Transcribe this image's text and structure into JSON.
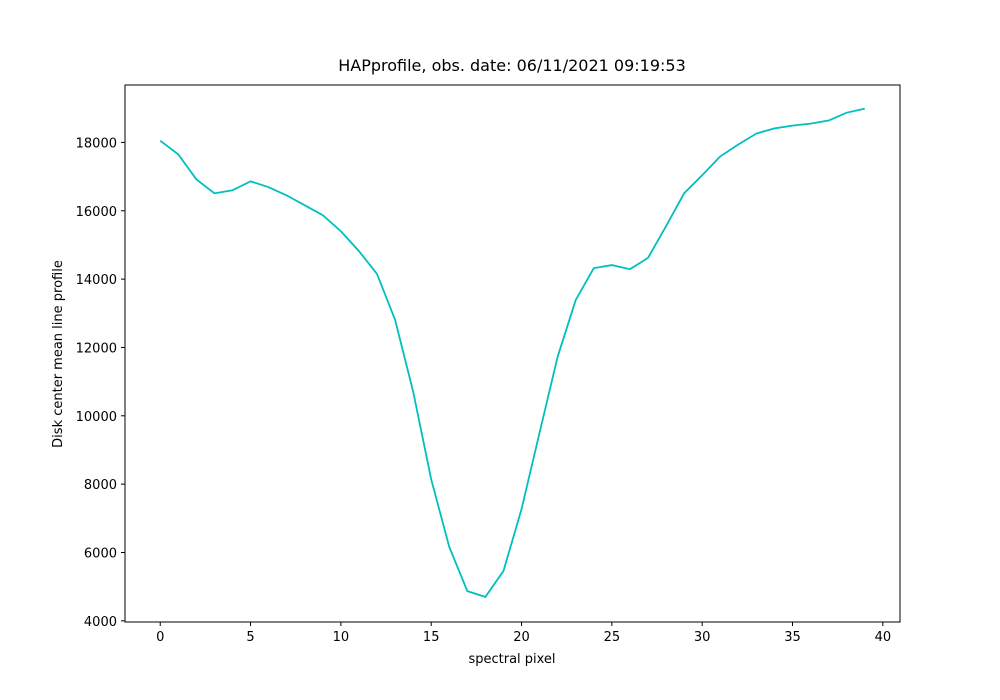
{
  "chart_data": {
    "type": "line",
    "title": "HAPprofile, obs. date: 06/11/2021 09:19:53",
    "xlabel": "spectral pixel",
    "ylabel": "Disk center mean line profile",
    "x": [
      0,
      1,
      2,
      3,
      4,
      5,
      6,
      7,
      8,
      9,
      10,
      11,
      12,
      13,
      14,
      15,
      16,
      17,
      18,
      19,
      20,
      21,
      22,
      23,
      24,
      25,
      26,
      27,
      28,
      29,
      30,
      31,
      32,
      33,
      34,
      35,
      36,
      37,
      38,
      39
    ],
    "series": [
      {
        "color": "#00bfbf",
        "values": [
          18050,
          17650,
          16920,
          16510,
          16600,
          16860,
          16690,
          16450,
          16160,
          15870,
          15400,
          14820,
          14150,
          12810,
          10710,
          8140,
          6160,
          4870,
          4700,
          5460,
          7270,
          9510,
          11730,
          13390,
          14320,
          14410,
          14290,
          14620,
          15550,
          16510,
          17040,
          17590,
          17940,
          18260,
          18410,
          18490,
          18550,
          18640,
          18870,
          18990
        ]
      }
    ],
    "xlim": [
      -1.95,
      40.95
    ],
    "xticks": [
      0,
      5,
      10,
      15,
      20,
      25,
      30,
      35,
      40
    ],
    "ylim": [
      3966,
      19680
    ],
    "yticks": [
      4000,
      6000,
      8000,
      10000,
      12000,
      14000,
      16000,
      18000
    ]
  }
}
